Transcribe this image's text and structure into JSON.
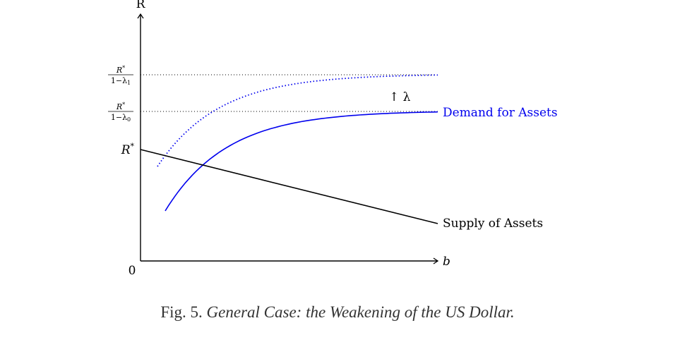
{
  "diagram": {
    "y_axis_label": "R",
    "x_axis_label": "b",
    "origin_label": "0",
    "r_star_label": "R",
    "r_star_sup": "*",
    "level_1": {
      "num": "R",
      "num_sup": "*",
      "den_pre": "1−λ",
      "den_sub": "1"
    },
    "level_0": {
      "num": "R",
      "num_sup": "*",
      "den_pre": "1−λ",
      "den_sub": "0"
    },
    "shift_label": "↑ λ",
    "demand_label": "Demand for Assets",
    "supply_label": "Supply of Assets",
    "demand_color": "#0000ee",
    "supply_color": "#000000"
  },
  "caption": {
    "prefix": "Fig. 5.",
    "title": "General Case: the Weakening of the US Dollar."
  }
}
